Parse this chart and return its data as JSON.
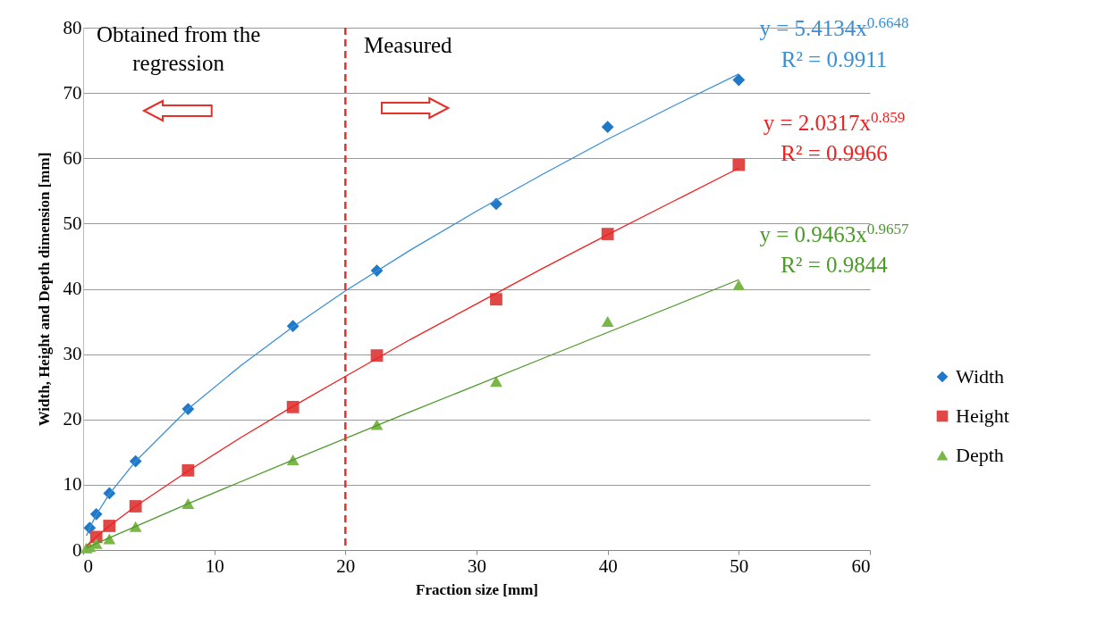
{
  "chart_data": {
    "type": "scatter",
    "xlabel": "Fraction size [mm]",
    "ylabel": "Width, Height and Depth dimension [mm]",
    "xlim": [
      0,
      60
    ],
    "xticks": [
      0,
      10,
      20,
      30,
      40,
      50,
      60
    ],
    "ylim": [
      0,
      80
    ],
    "yticks": [
      0,
      10,
      20,
      30,
      40,
      50,
      60,
      70,
      80
    ],
    "grid": "y",
    "legend": "right",
    "series": [
      {
        "name": "Width",
        "color": "#1f78c8",
        "marker": "diamond",
        "x": [
          0.5,
          1,
          2,
          4,
          8,
          16,
          22.4,
          31.5,
          40,
          50
        ],
        "values": [
          3.4,
          5.5,
          8.7,
          13.6,
          21.6,
          34.3,
          42.8,
          53,
          64.8,
          72
        ]
      },
      {
        "name": "Height",
        "color": "#e04848",
        "marker": "square",
        "x": [
          1,
          2,
          4,
          8,
          16,
          22.4,
          31.5,
          40,
          50
        ],
        "values": [
          2.0,
          3.7,
          6.7,
          12.2,
          21.9,
          29.8,
          38.4,
          48.4,
          59
        ]
      },
      {
        "name": "Depth",
        "color": "#7ab648",
        "marker": "triangle",
        "x": [
          0.25,
          0.5,
          1,
          2,
          4,
          8,
          16,
          22.4,
          31.5,
          40,
          50
        ],
        "values": [
          0.3,
          0.5,
          1.0,
          1.7,
          3.6,
          7.1,
          13.8,
          19.2,
          25.8,
          35,
          40.6
        ]
      },
      {
        "type": "line",
        "color": "#3a8fd8",
        "marker": "none",
        "x": [
          0.25,
          0.5,
          1,
          2,
          4,
          8,
          12,
          16,
          20,
          25,
          30,
          35,
          40,
          45,
          50
        ],
        "values": [
          2.2,
          3.4,
          5.4,
          8.6,
          13.6,
          21.6,
          28.2,
          34.2,
          39.7,
          46.0,
          51.9,
          57.5,
          62.9,
          68.0,
          72.9
        ]
      },
      {
        "type": "line",
        "color": "#f02020",
        "marker": "none",
        "x": [
          0.25,
          0.5,
          1,
          2,
          4,
          8,
          12,
          16,
          20,
          25,
          30,
          35,
          40,
          45,
          50
        ],
        "values": [
          0.6,
          1.1,
          2.0,
          3.7,
          6.7,
          12.1,
          17.2,
          22.0,
          26.6,
          32.3,
          37.7,
          43.1,
          48.3,
          53.4,
          58.5
        ]
      },
      {
        "type": "line",
        "color": "#4c9a2a",
        "marker": "none",
        "x": [
          0.25,
          1,
          4,
          8,
          16,
          25,
          35,
          50
        ],
        "values": [
          0.3,
          1.0,
          3.6,
          7.1,
          13.8,
          21.2,
          29.3,
          41.4
        ]
      }
    ],
    "ref_lines": [
      {
        "axis": "x",
        "value": 20,
        "color": "#e8302a",
        "line_style": "dashed"
      }
    ],
    "annotations": [
      "Obtained from the regression",
      "Measured",
      "y = 5.4134x$^{0.6648}$",
      "R² = 0.9911",
      "y = 2.0317x$^{0.859}$",
      "R² = 0.9966",
      "y = 0.9463x$^{0.9657}$",
      "R² = 0.9844"
    ]
  }
}
